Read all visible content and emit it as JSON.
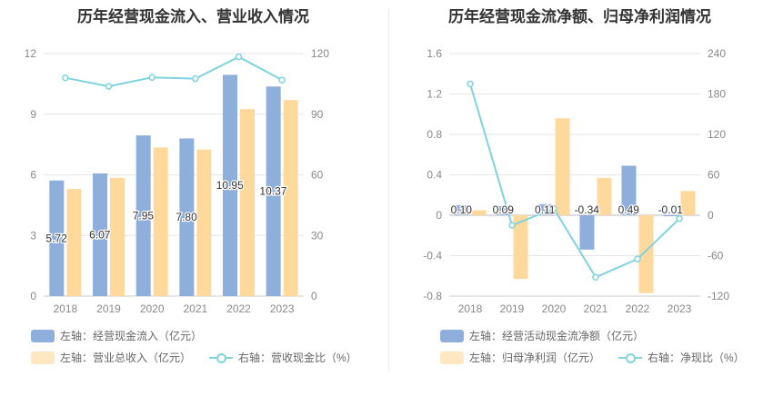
{
  "charts": {
    "left": {
      "title": "历年经营现金流入、营业收入情况",
      "legend": {
        "item1": "左轴：经营现金流入（亿元）",
        "item2": "左轴：营业总收入（亿元）",
        "item3": "右轴：营收现金比（%）"
      }
    },
    "right": {
      "title": "历年经营现金流净额、归母净利润情况",
      "legend": {
        "item1": "左轴：经营活动现金流净额（亿元）",
        "item2": "左轴：归母净利润（亿元）",
        "item3": "右轴：净现比（%）"
      }
    }
  },
  "chart_data": [
    {
      "type": "bar",
      "title": "历年经营现金流入、营业收入情况",
      "categories": [
        "2018",
        "2019",
        "2020",
        "2021",
        "2022",
        "2023"
      ],
      "left_axis": {
        "ylim": [
          0,
          12
        ],
        "ticks": [
          "0",
          "3",
          "6",
          "9",
          "12"
        ]
      },
      "right_axis": {
        "ylim": [
          0,
          120
        ],
        "ticks": [
          "0",
          "30",
          "60",
          "90",
          "120"
        ]
      },
      "grid": true,
      "legend_position": "bottom",
      "series": [
        {
          "name": "左轴：经营现金流入（亿元）",
          "axis": "left",
          "kind": "bar",
          "color": "#8eaedc",
          "values": [
            5.72,
            6.07,
            7.95,
            7.8,
            10.95,
            10.37
          ],
          "labels": [
            "5.72",
            "6.07",
            "7.95",
            "7.80",
            "10.95",
            "10.37"
          ]
        },
        {
          "name": "左轴：营业总收入（亿元）",
          "axis": "left",
          "kind": "bar",
          "color": "#ffd99c",
          "values": [
            5.3,
            5.85,
            7.35,
            7.25,
            9.25,
            9.7
          ]
        },
        {
          "name": "右轴：营收现金比（%）",
          "axis": "right",
          "kind": "line",
          "color": "#7fd3dd",
          "values": [
            108,
            103.8,
            108.2,
            107.6,
            118.4,
            106.9
          ]
        }
      ]
    },
    {
      "type": "bar",
      "title": "历年经营现金流净额、归母净利润情况",
      "categories": [
        "2018",
        "2019",
        "2020",
        "2021",
        "2022",
        "2023"
      ],
      "left_axis": {
        "ylim": [
          -0.8,
          1.6
        ],
        "ticks": [
          "-0.8",
          "-0.4",
          "0",
          "0.4",
          "0.8",
          "1.2",
          "1.6"
        ]
      },
      "right_axis": {
        "ylim": [
          -120,
          240
        ],
        "ticks": [
          "-120",
          "-60",
          "0",
          "60",
          "120",
          "180",
          "240"
        ]
      },
      "grid": true,
      "legend_position": "bottom",
      "series": [
        {
          "name": "左轴：经营活动现金流净额（亿元）",
          "axis": "left",
          "kind": "bar",
          "color": "#8eaedc",
          "values": [
            0.1,
            0.09,
            0.11,
            -0.34,
            0.49,
            -0.01
          ],
          "labels": [
            "0.10",
            "0.09",
            "0.11",
            "-0.34",
            "0.49",
            "-0.01"
          ]
        },
        {
          "name": "左轴：归母净利润（亿元）",
          "axis": "left",
          "kind": "bar",
          "color": "#ffd99c",
          "values": [
            0.05,
            -0.63,
            0.96,
            0.37,
            -0.77,
            0.24
          ]
        },
        {
          "name": "右轴：净现比（%）",
          "axis": "right",
          "kind": "line",
          "color": "#7fd3dd",
          "values": [
            195,
            -15,
            10,
            -92,
            -65,
            -5
          ]
        }
      ]
    }
  ]
}
